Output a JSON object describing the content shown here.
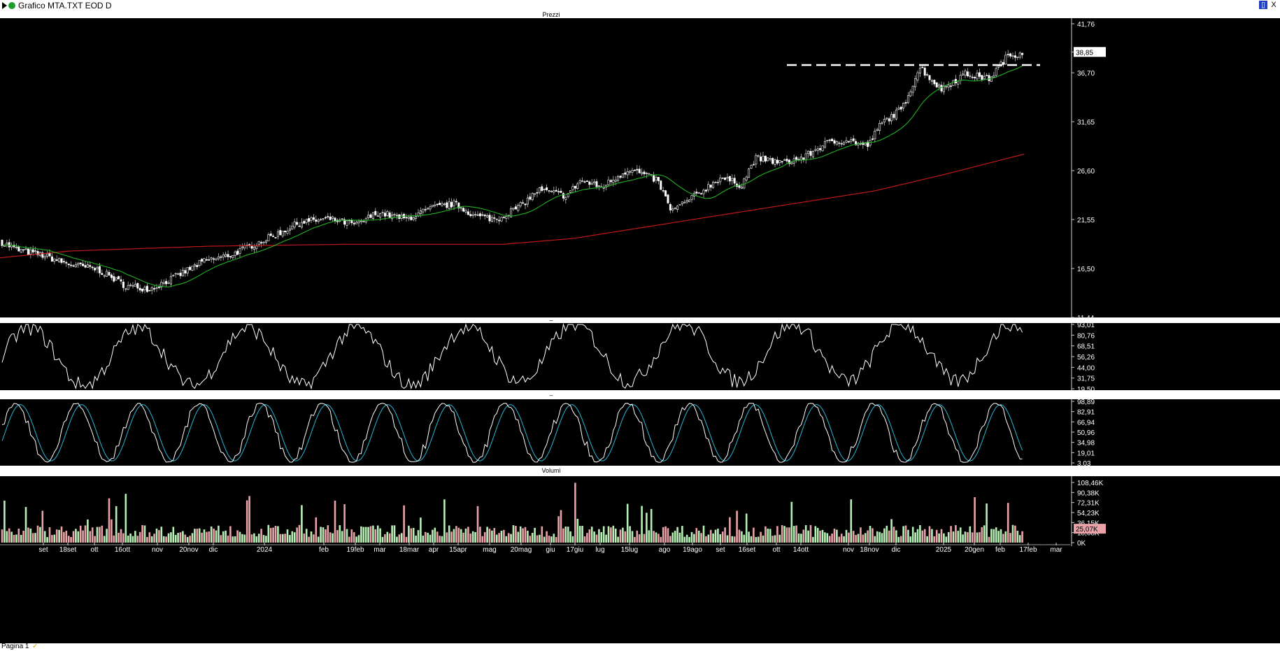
{
  "window": {
    "title": "Grafico MTA.TXT EOD D",
    "restore_label": "▯",
    "close_label": "X"
  },
  "status": {
    "label": "Pagina 1",
    "check": "✓"
  },
  "chart_data": {
    "type": "candlestick",
    "panels": [
      {
        "title": "Prezzi",
        "ticks": [
          "41,76",
          "38,85",
          "36,70",
          "31,65",
          "26,60",
          "21,55",
          "16,50",
          "11,44"
        ],
        "last_value": "38,85",
        "resistance": 37.5,
        "price_path": [
          [
            0,
            19.3
          ],
          [
            25,
            18.4
          ],
          [
            60,
            17.9
          ],
          [
            100,
            16.9
          ],
          [
            140,
            16.4
          ],
          [
            180,
            14.7
          ],
          [
            215,
            14.4
          ],
          [
            250,
            15.6
          ],
          [
            290,
            17.2
          ],
          [
            330,
            17.9
          ],
          [
            360,
            18.9
          ],
          [
            395,
            20.0
          ],
          [
            430,
            21.3
          ],
          [
            470,
            21.6
          ],
          [
            510,
            21.0
          ],
          [
            540,
            22.3
          ],
          [
            580,
            21.6
          ],
          [
            620,
            22.8
          ],
          [
            650,
            23.2
          ],
          [
            680,
            21.9
          ],
          [
            710,
            21.6
          ],
          [
            745,
            23.0
          ],
          [
            770,
            24.6
          ],
          [
            810,
            24.0
          ],
          [
            830,
            25.6
          ],
          [
            860,
            24.9
          ],
          [
            900,
            26.8
          ],
          [
            940,
            25.6
          ],
          [
            960,
            22.4
          ],
          [
            1000,
            24.3
          ],
          [
            1030,
            25.9
          ],
          [
            1060,
            25.1
          ],
          [
            1080,
            27.9
          ],
          [
            1120,
            27.4
          ],
          [
            1150,
            28.0
          ],
          [
            1180,
            29.4
          ],
          [
            1210,
            29.8
          ],
          [
            1240,
            29.1
          ],
          [
            1260,
            31.5
          ],
          [
            1290,
            33.0
          ],
          [
            1315,
            37.3
          ],
          [
            1345,
            35.0
          ],
          [
            1380,
            36.6
          ],
          [
            1415,
            36.1
          ],
          [
            1440,
            38.4
          ],
          [
            1464,
            38.85
          ]
        ],
        "series": [
          {
            "name": "",
            "color": "#22b022"
          },
          {
            "name": "",
            "color": "#c01818"
          }
        ]
      },
      {
        "title": "",
        "ticks": [
          "93,01",
          "80,76",
          "68,51",
          "56,26",
          "44,00",
          "31,75",
          "19,50"
        ],
        "series_color": "#ffffff"
      },
      {
        "title": "",
        "ticks": [
          "98,89",
          "82,91",
          "66,94",
          "50,96",
          "34,98",
          "19,01",
          "3,03"
        ],
        "series_colors": [
          "#ffffff",
          "#29b6d6"
        ]
      },
      {
        "title": "Volumi",
        "ticks": [
          "108,46K",
          "90,38K",
          "72,31K",
          "54,23K",
          "36,15K",
          "18,08K",
          "0K"
        ],
        "last_value": "25,07K"
      }
    ],
    "x_labels": [
      "set",
      "18set",
      "ott",
      "16ott",
      "nov",
      "20nov",
      "dic",
      "2024",
      "feb",
      "19feb",
      "mar",
      "18mar",
      "apr",
      "15apr",
      "mag",
      "20mag",
      "giu",
      "17giu",
      "lug",
      "15lug",
      "ago",
      "19ago",
      "set",
      "16set",
      "ott",
      "14ott",
      "nov",
      "18nov",
      "dic",
      "2025",
      "20gen",
      "feb",
      "17feb",
      "mar"
    ],
    "colors": {
      "up": "#b7efb7",
      "down": "#e8a2a8",
      "line": "#ffffff",
      "signal": "#29b6d6",
      "ma_fast": "#22b022",
      "ma_slow": "#c01818",
      "resistance": "#ffffff"
    }
  }
}
